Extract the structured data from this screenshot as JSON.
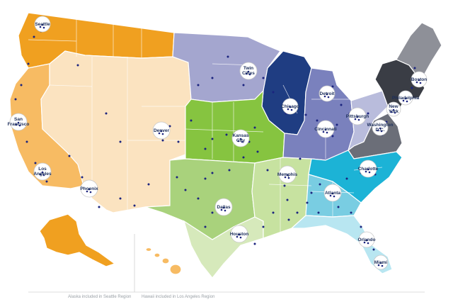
{
  "regions": [
    {
      "id": "seattle",
      "color": "#f0a020"
    },
    {
      "id": "los-angeles",
      "color": "#f7bb63"
    },
    {
      "id": "denver",
      "color": "#fbe3c0"
    },
    {
      "id": "twin-cities",
      "color": "#a4a6cf"
    },
    {
      "id": "chicago",
      "color": "#1f3d82"
    },
    {
      "id": "kansas-city",
      "color": "#86c440"
    },
    {
      "id": "dallas",
      "color": "#a9d27c"
    },
    {
      "id": "houston",
      "color": "#d6e9bb"
    },
    {
      "id": "memphis",
      "color": "#c7e2a0"
    },
    {
      "id": "cincinnati",
      "color": "#7a81bd"
    },
    {
      "id": "pittsburgh",
      "color": "#b9bcdc"
    },
    {
      "id": "charlotte",
      "color": "#1cb3d6"
    },
    {
      "id": "atlanta",
      "color": "#79cde2"
    },
    {
      "id": "orlando",
      "color": "#b8e6f1"
    },
    {
      "id": "washington",
      "color": "#6b6e78"
    },
    {
      "id": "boston",
      "color": "#3a3d45"
    },
    {
      "id": "maine",
      "color": "#8e9098"
    }
  ],
  "cities": [
    {
      "id": "seattle",
      "label": "Seattle"
    },
    {
      "id": "san-francisco",
      "label": "San Francisco"
    },
    {
      "id": "los-angeles",
      "label": "Los Angeles"
    },
    {
      "id": "phoenix",
      "label": "Phoenix"
    },
    {
      "id": "denver",
      "label": "Denver"
    },
    {
      "id": "twin-cities",
      "label": "Twin Cities"
    },
    {
      "id": "chicago",
      "label": "Chicago"
    },
    {
      "id": "kansas-city",
      "label": "Kansas City"
    },
    {
      "id": "dallas",
      "label": "Dallas"
    },
    {
      "id": "houston",
      "label": "Houston"
    },
    {
      "id": "memphis",
      "label": "Memphis"
    },
    {
      "id": "cincinnati",
      "label": "Cincinnati"
    },
    {
      "id": "detroit",
      "label": "Detroit"
    },
    {
      "id": "pittsburgh",
      "label": "Pittsburgh"
    },
    {
      "id": "atlanta",
      "label": "Atlanta"
    },
    {
      "id": "charlotte",
      "label": "Charlotte"
    },
    {
      "id": "orlando",
      "label": "Orlando"
    },
    {
      "id": "miami",
      "label": "Miami"
    },
    {
      "id": "washington",
      "label": "Washington D.C."
    },
    {
      "id": "new-york",
      "label": "New York"
    },
    {
      "id": "boston",
      "label": "Boston"
    },
    {
      "id": "philadelphia",
      "label": "Philadelphia"
    }
  ],
  "notes": {
    "alaska": "Alaska included in Seattle Region",
    "hawaii": "Hawaii included in Los Angeles Region"
  }
}
